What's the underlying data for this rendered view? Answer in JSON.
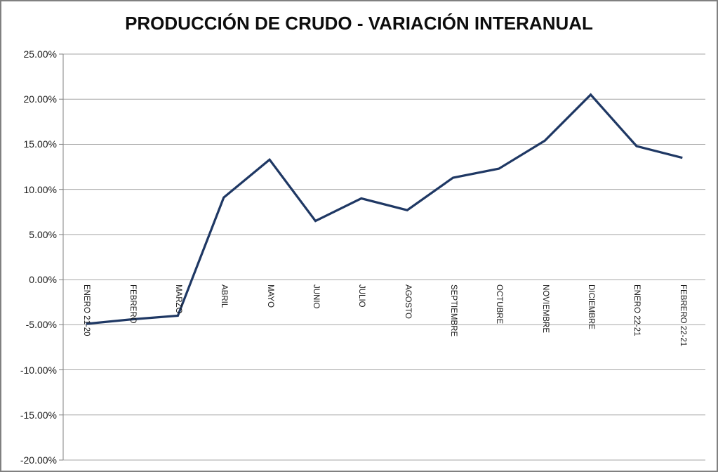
{
  "chart_data": {
    "type": "line",
    "title": "PRODUCCIÓN DE CRUDO - VARIACIÓN INTERANUAL",
    "categories": [
      "ENERO 21-20",
      "FEBRERO",
      "MARZO",
      "ABRIL",
      "MAYO",
      "JUNIO",
      "JULIO",
      "AGOSTO",
      "SEPTIEMBRE",
      "OCTUBRE",
      "NOVIEMBRE",
      "DICIEMBRE",
      "ENERO 22-21",
      "FEBRERO 22-21"
    ],
    "values": [
      -4.9,
      -4.4,
      -4.0,
      9.1,
      13.3,
      6.5,
      9.0,
      7.7,
      11.3,
      12.3,
      15.4,
      20.5,
      14.8,
      13.5
    ],
    "unit": "%",
    "xlabel": "",
    "ylabel": "",
    "ylim": [
      -20,
      25
    ],
    "ytick_step": 5,
    "ytick_labels": [
      "25.00%",
      "20.00%",
      "15.00%",
      "10.00%",
      "5.00%",
      "0.00%",
      "-5.00%",
      "-10.00%",
      "-15.00%",
      "-20.00%"
    ],
    "grid": true,
    "legend": "none",
    "colors": {
      "line": "#1F3864",
      "gridline": "#A6A6A6",
      "axis": "#808080",
      "text": "#1A1A1A",
      "title": "#0D0D0D",
      "frame_border": "#808080",
      "background": "#FFFFFF"
    }
  }
}
